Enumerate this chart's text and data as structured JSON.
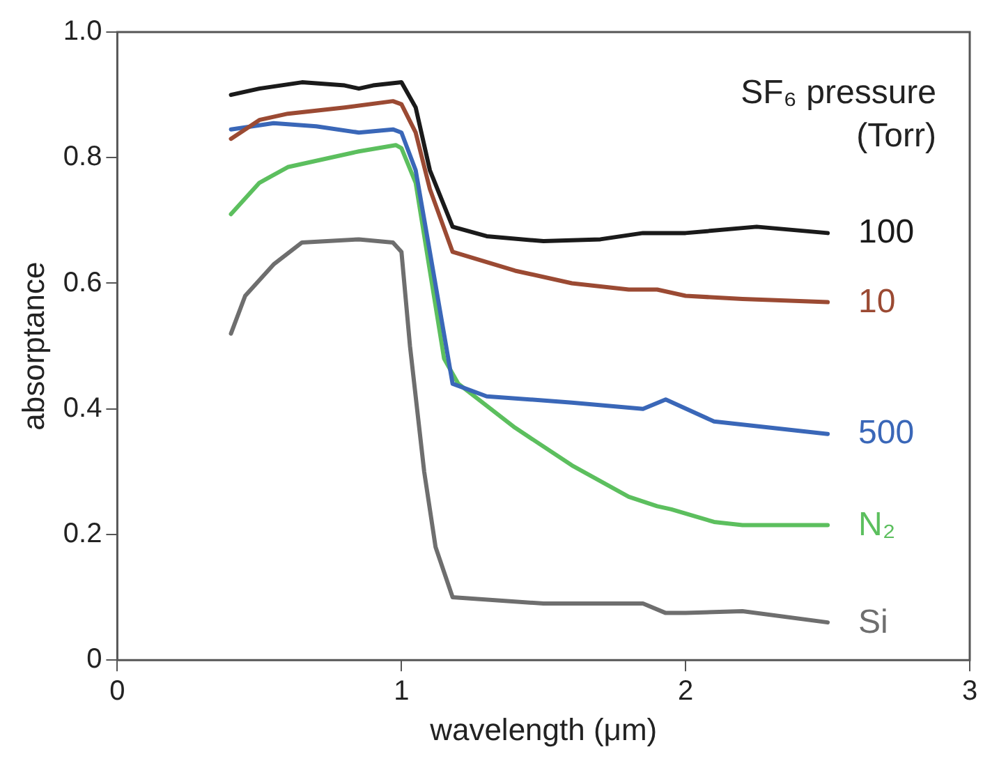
{
  "chart_data": {
    "type": "line",
    "xlabel": "wavelength (μm)",
    "ylabel": "absorptance",
    "legend_title": "SF₆ pressure (Torr)",
    "xlim": [
      0,
      3
    ],
    "xticks": [
      0,
      1,
      2,
      3
    ],
    "ylim": [
      0,
      1
    ],
    "yticks": [
      0,
      0.2,
      0.4,
      0.6,
      0.8,
      {
        "value": 1,
        "label": "1.0"
      }
    ],
    "grid": false,
    "legend": false,
    "marker": "none",
    "line_style": "solid",
    "series": [
      {
        "name": "100",
        "color": "#1a1a1a",
        "x": [
          0.4,
          0.5,
          0.65,
          0.8,
          0.85,
          0.9,
          1.0,
          1.05,
          1.1,
          1.18,
          1.3,
          1.5,
          1.7,
          1.85,
          2.0,
          2.25,
          2.5
        ],
        "values": [
          0.9,
          0.91,
          0.92,
          0.915,
          0.91,
          0.915,
          0.92,
          0.88,
          0.78,
          0.69,
          0.675,
          0.667,
          0.67,
          0.68,
          0.68,
          0.69,
          0.68
        ]
      },
      {
        "name": "10",
        "color": "#9b4a33",
        "x": [
          0.4,
          0.5,
          0.6,
          0.8,
          0.97,
          1.0,
          1.05,
          1.1,
          1.18,
          1.4,
          1.6,
          1.8,
          1.9,
          2.0,
          2.2,
          2.5
        ],
        "values": [
          0.83,
          0.86,
          0.87,
          0.88,
          0.89,
          0.885,
          0.84,
          0.75,
          0.65,
          0.62,
          0.6,
          0.59,
          0.59,
          0.58,
          0.575,
          0.57
        ]
      },
      {
        "name": "500",
        "color": "#3a67b8",
        "x": [
          0.4,
          0.55,
          0.7,
          0.85,
          0.97,
          1.0,
          1.05,
          1.1,
          1.18,
          1.3,
          1.6,
          1.85,
          1.93,
          2.1,
          2.3,
          2.5
        ],
        "values": [
          0.845,
          0.855,
          0.85,
          0.84,
          0.845,
          0.84,
          0.78,
          0.65,
          0.44,
          0.42,
          0.41,
          0.4,
          0.415,
          0.38,
          0.37,
          0.36
        ]
      },
      {
        "name": "N₂",
        "color": "#5cbf5e",
        "x": [
          0.4,
          0.5,
          0.6,
          0.75,
          0.85,
          0.98,
          1.0,
          1.05,
          1.1,
          1.15,
          1.2,
          1.4,
          1.6,
          1.8,
          1.9,
          1.95,
          2.1,
          2.2,
          2.5
        ],
        "values": [
          0.71,
          0.76,
          0.785,
          0.8,
          0.81,
          0.82,
          0.815,
          0.76,
          0.62,
          0.48,
          0.44,
          0.37,
          0.31,
          0.26,
          0.245,
          0.24,
          0.22,
          0.215,
          0.215
        ]
      },
      {
        "name": "Si",
        "color": "#6e6e6e",
        "x": [
          0.4,
          0.45,
          0.55,
          0.65,
          0.85,
          0.97,
          1.0,
          1.03,
          1.08,
          1.12,
          1.18,
          1.5,
          1.85,
          1.93,
          2.0,
          2.2,
          2.5
        ],
        "values": [
          0.52,
          0.58,
          0.63,
          0.665,
          0.67,
          0.665,
          0.65,
          0.5,
          0.3,
          0.18,
          0.1,
          0.09,
          0.09,
          0.075,
          0.075,
          0.078,
          0.06
        ]
      }
    ]
  }
}
